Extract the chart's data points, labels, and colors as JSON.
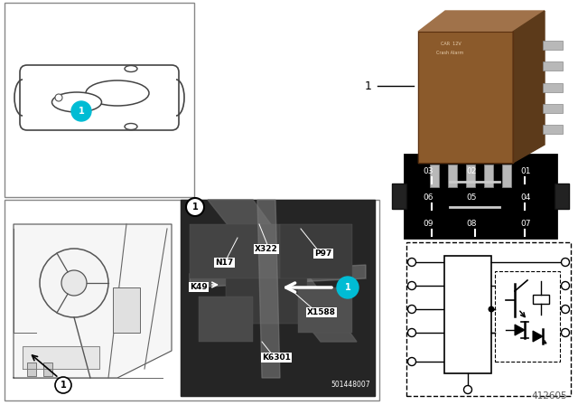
{
  "bg_color": "#ffffff",
  "border_color": "#888888",
  "cyan_color": "#00bcd4",
  "black": "#000000",
  "white": "#ffffff",
  "gray_light": "#cccccc",
  "relay_brown": "#8B5A2B",
  "relay_brown_light": "#A0724A",
  "relay_brown_dark": "#5C3A1A",
  "photo_bg": "#1a1a1a",
  "part_number": "412605",
  "photo_id": "501448007",
  "pin_labels": [
    "03",
    "02",
    "01",
    "06",
    "05",
    "04",
    "09",
    "08",
    "07"
  ],
  "photo_component_labels": [
    "N17",
    "X322",
    "P97",
    "K49",
    "X1588",
    "K6301"
  ]
}
